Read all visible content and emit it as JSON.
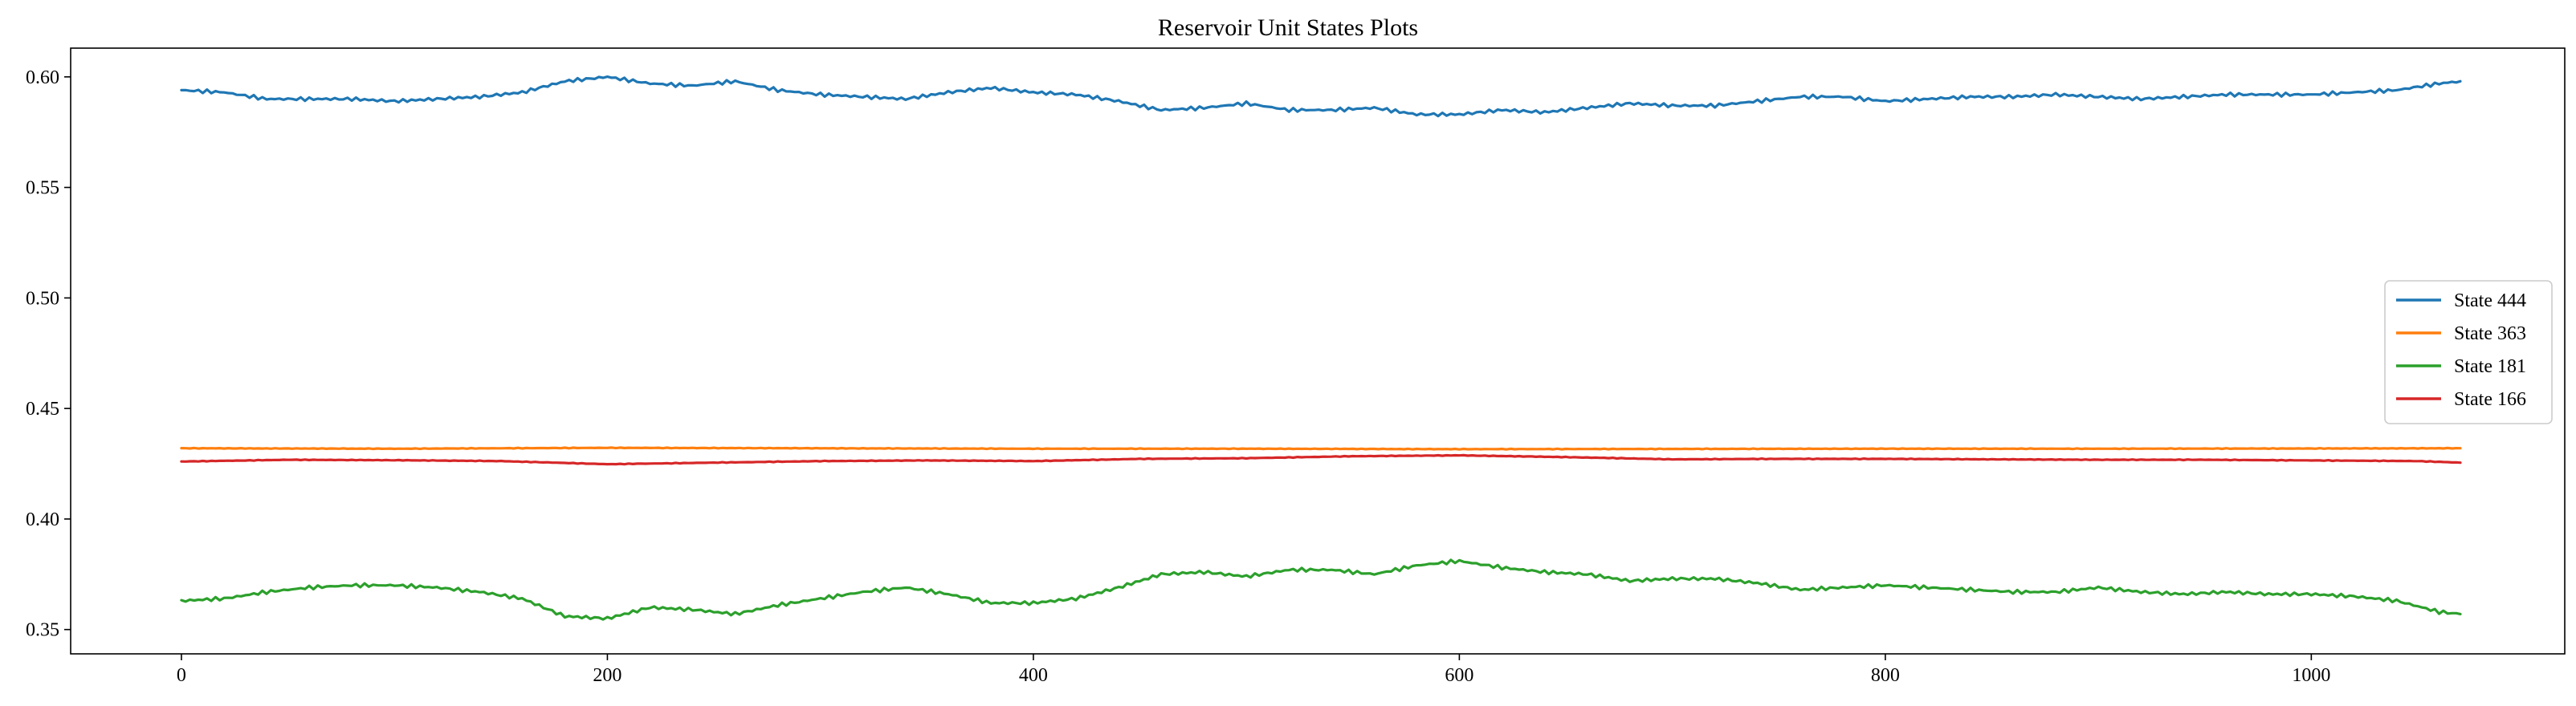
{
  "chart_data": {
    "type": "line",
    "title": "Reservoir Unit States Plots",
    "xlabel": "",
    "ylabel": "",
    "xlim": [
      -52,
      1119
    ],
    "ylim": [
      0.339,
      0.613
    ],
    "xticks": [
      0,
      200,
      400,
      600,
      800,
      1000
    ],
    "xtick_labels": [
      "0",
      "200",
      "400",
      "600",
      "800",
      "1000"
    ],
    "yticks": [
      0.35,
      0.4,
      0.45,
      0.5,
      0.55,
      0.6
    ],
    "ytick_labels": [
      "0.35",
      "0.40",
      "0.45",
      "0.50",
      "0.55",
      "0.60"
    ],
    "grid": false,
    "legend_position": "center-right",
    "series": [
      {
        "name": "State 444",
        "color": "#1f77b4",
        "x": [
          0,
          20,
          40,
          60,
          80,
          100,
          120,
          140,
          160,
          180,
          200,
          220,
          240,
          260,
          280,
          300,
          320,
          340,
          360,
          380,
          400,
          420,
          440,
          460,
          480,
          500,
          520,
          540,
          560,
          580,
          600,
          620,
          640,
          660,
          680,
          700,
          720,
          740,
          760,
          780,
          800,
          820,
          840,
          860,
          880,
          900,
          920,
          940,
          960,
          980,
          1000,
          1020,
          1040,
          1060,
          1070
        ],
        "values": [
          0.594,
          0.593,
          0.59,
          0.59,
          0.59,
          0.589,
          0.59,
          0.591,
          0.593,
          0.598,
          0.6,
          0.597,
          0.596,
          0.598,
          0.594,
          0.592,
          0.591,
          0.59,
          0.593,
          0.595,
          0.593,
          0.592,
          0.589,
          0.585,
          0.586,
          0.588,
          0.585,
          0.585,
          0.586,
          0.583,
          0.583,
          0.585,
          0.584,
          0.586,
          0.588,
          0.587,
          0.587,
          0.589,
          0.591,
          0.591,
          0.589,
          0.59,
          0.591,
          0.591,
          0.592,
          0.591,
          0.59,
          0.591,
          0.592,
          0.592,
          0.592,
          0.593,
          0.594,
          0.597,
          0.598
        ]
      },
      {
        "name": "State 363",
        "color": "#ff7f0e",
        "x": [
          0,
          100,
          200,
          300,
          400,
          500,
          600,
          700,
          800,
          900,
          1000,
          1070
        ],
        "values": [
          0.432,
          0.4318,
          0.4322,
          0.432,
          0.4318,
          0.4318,
          0.4316,
          0.4317,
          0.4318,
          0.4318,
          0.4319,
          0.432
        ]
      },
      {
        "name": "State 181",
        "color": "#2ca02c",
        "x": [
          0,
          20,
          40,
          60,
          80,
          100,
          120,
          140,
          160,
          180,
          200,
          220,
          240,
          260,
          280,
          300,
          320,
          340,
          360,
          380,
          400,
          420,
          440,
          460,
          480,
          500,
          520,
          540,
          560,
          580,
          600,
          620,
          640,
          660,
          680,
          700,
          720,
          740,
          760,
          780,
          800,
          820,
          840,
          860,
          880,
          900,
          920,
          940,
          960,
          980,
          1000,
          1020,
          1040,
          1060,
          1070
        ],
        "values": [
          0.363,
          0.364,
          0.367,
          0.369,
          0.37,
          0.37,
          0.369,
          0.367,
          0.364,
          0.356,
          0.355,
          0.36,
          0.359,
          0.357,
          0.361,
          0.364,
          0.367,
          0.369,
          0.366,
          0.362,
          0.362,
          0.364,
          0.369,
          0.375,
          0.376,
          0.374,
          0.377,
          0.377,
          0.375,
          0.379,
          0.381,
          0.378,
          0.376,
          0.375,
          0.372,
          0.373,
          0.373,
          0.371,
          0.368,
          0.369,
          0.37,
          0.369,
          0.368,
          0.367,
          0.367,
          0.369,
          0.367,
          0.366,
          0.367,
          0.366,
          0.366,
          0.365,
          0.363,
          0.358,
          0.357
        ]
      },
      {
        "name": "State 166",
        "color": "#d62728",
        "x": [
          0,
          50,
          100,
          150,
          200,
          250,
          300,
          350,
          400,
          450,
          500,
          550,
          600,
          650,
          700,
          750,
          800,
          850,
          900,
          950,
          1000,
          1050,
          1070
        ],
        "values": [
          0.426,
          0.4268,
          0.4266,
          0.4262,
          0.4248,
          0.4255,
          0.4262,
          0.4265,
          0.4262,
          0.4272,
          0.4275,
          0.4284,
          0.4288,
          0.428,
          0.427,
          0.4272,
          0.4272,
          0.427,
          0.4268,
          0.4268,
          0.4265,
          0.4262,
          0.4255
        ]
      }
    ]
  }
}
